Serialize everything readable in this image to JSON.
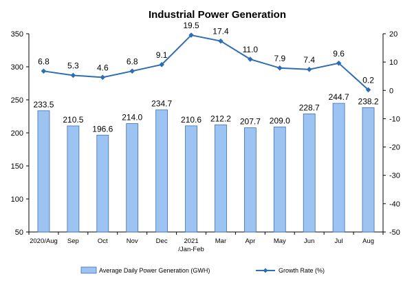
{
  "chart_data": {
    "type": "bar",
    "title": "Industrial Power Generation",
    "categories": [
      [
        "2020/Aug"
      ],
      [
        "Sep"
      ],
      [
        "Oct"
      ],
      [
        "Nov"
      ],
      [
        "Dec"
      ],
      [
        "2021",
        "/Jan-Feb"
      ],
      [
        "Mar"
      ],
      [
        "Apr"
      ],
      [
        "May"
      ],
      [
        "Jun"
      ],
      [
        "Jul"
      ],
      [
        "Aug"
      ]
    ],
    "series": [
      {
        "name": "Average Daily Power Generation (GWH)",
        "type": "bar",
        "axis": "left",
        "values": [
          233.5,
          210.5,
          196.6,
          214.0,
          234.7,
          210.6,
          212.2,
          207.7,
          209.0,
          228.7,
          244.7,
          238.2
        ],
        "labels": [
          "233.5",
          "210.5",
          "196.6",
          "214.0",
          "234.7",
          "210.6",
          "212.2",
          "207.7",
          "209.0",
          "228.7",
          "244.7",
          "238.2"
        ],
        "color": "#9DC3F2",
        "stroke": "#3A6FB0"
      },
      {
        "name": "Growth Rate (%)",
        "type": "line",
        "axis": "right",
        "values": [
          6.8,
          5.3,
          4.6,
          6.8,
          9.1,
          19.5,
          17.4,
          11.0,
          7.9,
          7.4,
          9.6,
          0.2
        ],
        "labels": [
          "6.8",
          "5.3",
          "4.6",
          "6.8",
          "9.1",
          "19.5",
          "17.4",
          "11.0",
          "7.9",
          "7.4",
          "9.6",
          "0.2"
        ],
        "color": "#2E6DB4"
      }
    ],
    "y_left": {
      "min": 50,
      "max": 350,
      "ticks": [
        "50",
        "100",
        "150",
        "200",
        "250",
        "300",
        "350"
      ]
    },
    "y_right": {
      "min": -50,
      "max": 20,
      "ticks": [
        "-50",
        "-40",
        "-30",
        "-20",
        "-10",
        "0",
        "10",
        "20"
      ]
    },
    "grid": false,
    "legend_position": "bottom"
  }
}
